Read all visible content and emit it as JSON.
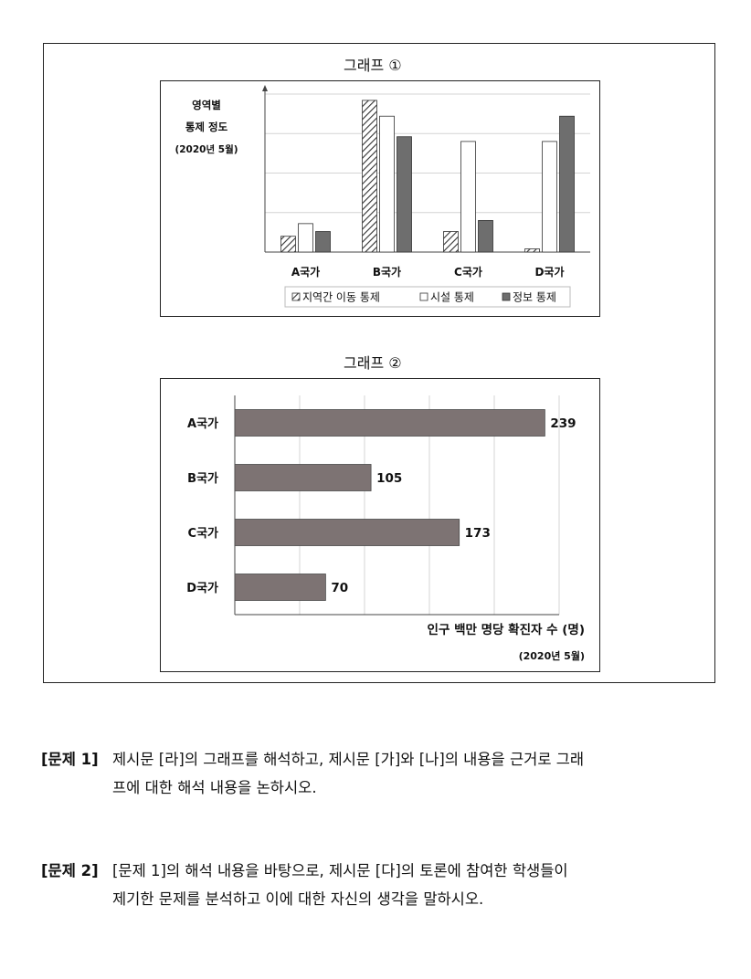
{
  "charts": {
    "graph1": {
      "title": "그래프 ①"
    },
    "graph2": {
      "title": "그래프 ②"
    }
  },
  "chart_data": [
    {
      "type": "bar",
      "orientation": "vertical",
      "title": "그래프 ①",
      "ylabel_lines": [
        "영역별",
        "통제 정도",
        "(2020년 5월)"
      ],
      "categories": [
        "A국가",
        "B국가",
        "C국가",
        "D국가"
      ],
      "ylim": [
        0,
        10
      ],
      "grid": true,
      "legend_position": "bottom",
      "series": [
        {
          "name": "지역간 이동 통제",
          "values": [
            1.0,
            9.6,
            1.3,
            0.2
          ],
          "color": "#ffffff",
          "pattern": "hatch"
        },
        {
          "name": "시설 통제",
          "values": [
            1.8,
            8.6,
            7.0,
            7.0
          ],
          "color": "#ffffff",
          "pattern": "solid"
        },
        {
          "name": "정보 통제",
          "values": [
            1.3,
            7.3,
            2.0,
            8.6
          ],
          "color": "#6e6e6e",
          "pattern": "solid"
        }
      ]
    },
    {
      "type": "bar",
      "orientation": "horizontal",
      "title": "그래프 ②",
      "categories": [
        "A국가",
        "B국가",
        "C국가",
        "D국가"
      ],
      "values": [
        239,
        105,
        173,
        70
      ],
      "xlim": [
        0,
        250
      ],
      "grid": true,
      "xlabel": "인구 백만 명당 확진자 수 (명)",
      "note": "(2020년 5월)",
      "bar_color": "#7d7373"
    }
  ],
  "questions": [
    {
      "label": "[문제 1]",
      "lines": [
        "제시문 [라]의 그래프를 해석하고, 제시문 [가]와 [나]의 내용을 근거로 그래",
        "프에 대한 해석 내용을 논하시오."
      ]
    },
    {
      "label": "[문제 2]",
      "lines": [
        "[문제 1]의 해석  내용을 바탕으로, 제시문 [다]의 토론에 참여한 학생들이",
        "제기한 문제를 분석하고 이에 대한 자신의 생각을 말하시오."
      ]
    }
  ]
}
